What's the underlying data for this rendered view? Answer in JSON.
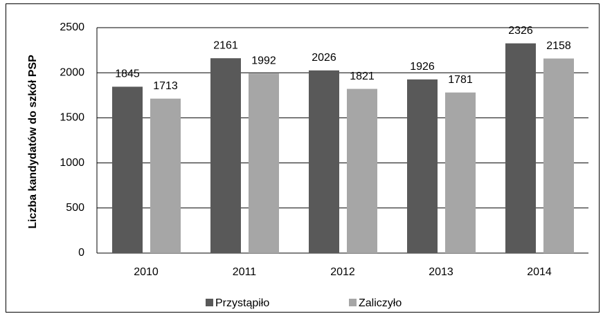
{
  "chart_data": {
    "type": "bar",
    "ylabel": "Liczba kandydatów do szkół PSP",
    "categories": [
      "2010",
      "2011",
      "2012",
      "2013",
      "2014"
    ],
    "series": [
      {
        "name": "Przystąpiło",
        "color": "#595959",
        "values": [
          1845,
          2161,
          2026,
          1926,
          2326
        ]
      },
      {
        "name": "Zaliczyło",
        "color": "#a6a6a6",
        "values": [
          1713,
          1992,
          1821,
          1781,
          2158
        ]
      }
    ],
    "ylim": [
      0,
      2500
    ],
    "yticks": [
      0,
      500,
      1000,
      1500,
      2000,
      2500
    ],
    "grid": true,
    "legend": "bottom"
  }
}
